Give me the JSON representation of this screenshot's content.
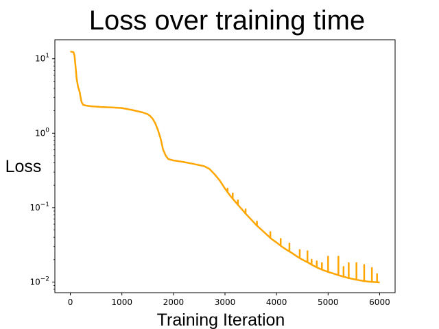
{
  "chart_data": {
    "type": "line",
    "title": "Loss over training time",
    "xlabel": "Training Iteration",
    "ylabel": "Loss",
    "xlim": [
      -300,
      6300
    ],
    "ylim": [
      0.0072,
      18
    ],
    "yscale": "log",
    "grid": false,
    "line_color": "#FFA500",
    "x_ticks": [
      {
        "value": 0,
        "label": "0"
      },
      {
        "value": 1000,
        "label": "1000"
      },
      {
        "value": 2000,
        "label": "2000"
      },
      {
        "value": 3000,
        "label": "3000"
      },
      {
        "value": 4000,
        "label": "4000"
      },
      {
        "value": 5000,
        "label": "5000"
      },
      {
        "value": 6000,
        "label": "6000"
      }
    ],
    "y_ticks": [
      {
        "value": 10,
        "base": "10",
        "exp": "1"
      },
      {
        "value": 1,
        "base": "10",
        "exp": "0"
      },
      {
        "value": 0.1,
        "base": "10",
        "exp": "−1"
      },
      {
        "value": 0.01,
        "base": "10",
        "exp": "−2"
      }
    ],
    "series": [
      {
        "color": "#FFA500",
        "x": [
          0,
          60,
          80,
          100,
          120,
          150,
          180,
          200,
          220,
          250,
          300,
          400,
          600,
          800,
          1000,
          1200,
          1400,
          1500,
          1550,
          1600,
          1650,
          1700,
          1750,
          1800,
          1850,
          1900,
          2000,
          2200,
          2400,
          2600,
          2700,
          2800,
          2900,
          3000,
          3100,
          3200,
          3300,
          3400,
          3500,
          3600,
          3700,
          3800,
          3900,
          4000,
          4100,
          4200,
          4300,
          4400,
          4500,
          4600,
          4700,
          4800,
          4900,
          5000,
          5100,
          5200,
          5300,
          5400,
          5500,
          5600,
          5700,
          5800,
          5900,
          6000
        ],
        "y": [
          12.5,
          12.3,
          11.0,
          8.0,
          5.5,
          4.2,
          3.6,
          3.0,
          2.6,
          2.4,
          2.35,
          2.3,
          2.25,
          2.22,
          2.18,
          2.05,
          1.9,
          1.8,
          1.7,
          1.55,
          1.35,
          1.1,
          0.85,
          0.6,
          0.5,
          0.45,
          0.43,
          0.41,
          0.385,
          0.36,
          0.33,
          0.28,
          0.23,
          0.18,
          0.145,
          0.12,
          0.1,
          0.083,
          0.07,
          0.059,
          0.051,
          0.044,
          0.038,
          0.034,
          0.03,
          0.027,
          0.0245,
          0.022,
          0.02,
          0.0185,
          0.0168,
          0.0155,
          0.0145,
          0.0137,
          0.013,
          0.0124,
          0.0118,
          0.0113,
          0.0109,
          0.0106,
          0.0103,
          0.0101,
          0.01,
          0.0099
        ]
      }
    ],
    "spikes": [
      {
        "x": 3050,
        "peak": 0.18
      },
      {
        "x": 3150,
        "peak": 0.155
      },
      {
        "x": 3250,
        "peak": 0.125
      },
      {
        "x": 3400,
        "peak": 0.095
      },
      {
        "x": 3620,
        "peak": 0.065
      },
      {
        "x": 3880,
        "peak": 0.047
      },
      {
        "x": 4080,
        "peak": 0.038
      },
      {
        "x": 4250,
        "peak": 0.033
      },
      {
        "x": 4450,
        "peak": 0.027
      },
      {
        "x": 4600,
        "peak": 0.026
      },
      {
        "x": 4680,
        "peak": 0.02
      },
      {
        "x": 4780,
        "peak": 0.019
      },
      {
        "x": 4880,
        "peak": 0.018
      },
      {
        "x": 5000,
        "peak": 0.022
      },
      {
        "x": 5200,
        "peak": 0.022
      },
      {
        "x": 5300,
        "peak": 0.016
      },
      {
        "x": 5400,
        "peak": 0.018
      },
      {
        "x": 5550,
        "peak": 0.018
      },
      {
        "x": 5700,
        "peak": 0.017
      },
      {
        "x": 5850,
        "peak": 0.0155
      },
      {
        "x": 5950,
        "peak": 0.0128
      }
    ]
  }
}
